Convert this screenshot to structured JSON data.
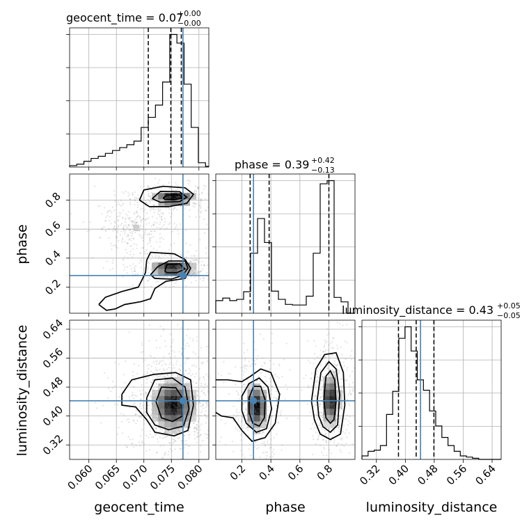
{
  "chart_data": {
    "type": "corner",
    "parameters": [
      "geocent_time",
      "phase",
      "luminosity_distance"
    ],
    "ranges": {
      "geocent_time": [
        0.0565,
        0.0818
      ],
      "phase": [
        0.02,
        0.98
      ],
      "luminosity_distance": [
        0.28,
        0.665
      ]
    },
    "ticks": {
      "geocent_time": [
        "0.060",
        "0.065",
        "0.070",
        "0.075",
        "0.080"
      ],
      "phase": [
        "0.2",
        "0.4",
        "0.6",
        "0.8"
      ],
      "luminosity_distance": [
        "0.32",
        "0.40",
        "0.48",
        "0.56",
        "0.64"
      ]
    },
    "titles": [
      {
        "param": "geocent_time",
        "label": "geocent_time = 0.07",
        "plus": "+0.00",
        "minus": "−0.00"
      },
      {
        "param": "phase",
        "label": "phase = 0.39",
        "plus": "+0.42",
        "minus": "−0.13"
      },
      {
        "param": "luminosity_distance",
        "label": "luminosity_distance = 0.43",
        "plus": "+0.05",
        "minus": "−0.05"
      }
    ],
    "truths": {
      "geocent_time": 0.0771,
      "phase": 0.28,
      "luminosity_distance": 0.442
    },
    "quantiles": {
      "geocent_time": [
        0.0708,
        0.0749,
        0.0768
      ],
      "phase": [
        0.257,
        0.388,
        0.8
      ],
      "luminosity_distance": [
        0.381,
        0.43,
        0.479
      ]
    },
    "histograms": {
      "geocent_time": {
        "edges": [
          0.0565,
          0.0578,
          0.0591,
          0.0604,
          0.0617,
          0.063,
          0.0643,
          0.0656,
          0.0669,
          0.0682,
          0.0695,
          0.0708,
          0.0721,
          0.0734,
          0.0747,
          0.076,
          0.0773,
          0.0786,
          0.0799,
          0.0812,
          0.0818
        ],
        "values": [
          2,
          4,
          8,
          12,
          15,
          19,
          23,
          27,
          31,
          36,
          55,
          69,
          86,
          118,
          184,
          172,
          115,
          55,
          6,
          1
        ]
      },
      "phase": {
        "edges": [
          0.02,
          0.068,
          0.116,
          0.164,
          0.212,
          0.26,
          0.308,
          0.356,
          0.404,
          0.452,
          0.5,
          0.548,
          0.596,
          0.644,
          0.692,
          0.74,
          0.788,
          0.836,
          0.884,
          0.932,
          0.98
        ],
        "values": [
          20,
          24,
          20,
          22,
          34,
          95,
          150,
          112,
          35,
          22,
          14,
          13,
          13,
          27,
          95,
          205,
          210,
          25,
          18,
          0
        ]
      },
      "luminosity_distance": {
        "edges": [
          0.28,
          0.297,
          0.314,
          0.331,
          0.348,
          0.365,
          0.382,
          0.399,
          0.416,
          0.433,
          0.45,
          0.467,
          0.484,
          0.501,
          0.518,
          0.535,
          0.552,
          0.569,
          0.586,
          0.603,
          0.62,
          0.665
        ],
        "values": [
          6,
          14,
          16,
          24,
          78,
          118,
          210,
          230,
          188,
          138,
          120,
          84,
          58,
          38,
          24,
          14,
          6,
          4,
          2,
          0,
          0
        ]
      }
    },
    "density_2d": [
      {
        "x": "geocent_time",
        "y": "phase",
        "modes": [
          {
            "center": [
              0.0755,
              0.815
            ],
            "sigma": [
              0.0024,
              0.03
            ]
          },
          {
            "center": [
              0.0752,
              0.33
            ],
            "sigma": [
              0.0026,
              0.03
            ]
          },
          {
            "center": [
              0.0685,
              0.62
            ],
            "sigma": [
              0.0022,
              0.05
            ]
          }
        ],
        "contours": [
          [
            [
              0.0692,
              0.8
            ],
            [
              0.07,
              0.87
            ],
            [
              0.0735,
              0.895
            ],
            [
              0.0775,
              0.885
            ],
            [
              0.079,
              0.84
            ],
            [
              0.0778,
              0.778
            ],
            [
              0.0745,
              0.755
            ],
            [
              0.071,
              0.755
            ],
            [
              0.0692,
              0.8
            ]
          ],
          [
            [
              0.0715,
              0.81
            ],
            [
              0.073,
              0.86
            ],
            [
              0.0765,
              0.858
            ],
            [
              0.0778,
              0.82
            ],
            [
              0.0765,
              0.79
            ],
            [
              0.073,
              0.785
            ],
            [
              0.0715,
              0.81
            ]
          ],
          [
            [
              0.0735,
              0.815
            ],
            [
              0.0742,
              0.835
            ],
            [
              0.0765,
              0.835
            ],
            [
              0.077,
              0.815
            ],
            [
              0.0755,
              0.802
            ],
            [
              0.0738,
              0.805
            ],
            [
              0.0735,
              0.815
            ]
          ],
          [
            [
              0.0618,
              0.08
            ],
            [
              0.063,
              0.13
            ],
            [
              0.066,
              0.17
            ],
            [
              0.069,
              0.2
            ],
            [
              0.0703,
              0.3
            ],
            [
              0.0705,
              0.385
            ],
            [
              0.0712,
              0.44
            ],
            [
              0.0755,
              0.43
            ],
            [
              0.0775,
              0.39
            ],
            [
              0.0785,
              0.33
            ],
            [
              0.0775,
              0.26
            ],
            [
              0.074,
              0.24
            ],
            [
              0.072,
              0.19
            ],
            [
              0.0712,
              0.12
            ],
            [
              0.0695,
              0.1
            ],
            [
              0.0665,
              0.08
            ],
            [
              0.0648,
              0.05
            ],
            [
              0.0632,
              0.04
            ],
            [
              0.0618,
              0.08
            ]
          ],
          [
            [
              0.0712,
              0.285
            ],
            [
              0.0725,
              0.34
            ],
            [
              0.0745,
              0.38
            ],
            [
              0.0775,
              0.38
            ],
            [
              0.078,
              0.33
            ],
            [
              0.077,
              0.28
            ],
            [
              0.075,
              0.255
            ],
            [
              0.072,
              0.26
            ],
            [
              0.0712,
              0.285
            ]
          ],
          [
            [
              0.0738,
              0.31
            ],
            [
              0.0742,
              0.355
            ],
            [
              0.0765,
              0.36
            ],
            [
              0.0775,
              0.325
            ],
            [
              0.076,
              0.3
            ],
            [
              0.0742,
              0.3
            ],
            [
              0.0738,
              0.31
            ]
          ]
        ]
      },
      {
        "x": "geocent_time",
        "y": "luminosity_distance",
        "modes": [
          {
            "center": [
              0.0754,
              0.43
            ],
            "sigma": [
              0.0025,
              0.045
            ]
          }
        ],
        "contours": [
          [
            [
              0.066,
              0.46
            ],
            [
              0.0678,
              0.5
            ],
            [
              0.0718,
              0.515
            ],
            [
              0.0758,
              0.52
            ],
            [
              0.0785,
              0.5
            ],
            [
              0.079,
              0.43
            ],
            [
              0.078,
              0.36
            ],
            [
              0.0755,
              0.345
            ],
            [
              0.072,
              0.355
            ],
            [
              0.0705,
              0.39
            ],
            [
              0.0685,
              0.425
            ],
            [
              0.066,
              0.43
            ],
            [
              0.066,
              0.46
            ]
          ],
          [
            [
              0.0705,
              0.45
            ],
            [
              0.072,
              0.5
            ],
            [
              0.0752,
              0.505
            ],
            [
              0.0775,
              0.48
            ],
            [
              0.0782,
              0.42
            ],
            [
              0.0772,
              0.372
            ],
            [
              0.0745,
              0.362
            ],
            [
              0.072,
              0.375
            ],
            [
              0.0705,
              0.41
            ],
            [
              0.0705,
              0.45
            ]
          ],
          [
            [
              0.0722,
              0.44
            ],
            [
              0.0732,
              0.48
            ],
            [
              0.0758,
              0.478
            ],
            [
              0.0772,
              0.445
            ],
            [
              0.077,
              0.4
            ],
            [
              0.0752,
              0.385
            ],
            [
              0.0732,
              0.395
            ],
            [
              0.0722,
              0.44
            ]
          ]
        ]
      },
      {
        "x": "phase",
        "y": "luminosity_distance",
        "modes": [
          {
            "center": [
              0.3,
              0.425
            ],
            "sigma": [
              0.05,
              0.04
            ]
          },
          {
            "center": [
              0.81,
              0.445
            ],
            "sigma": [
              0.04,
              0.045
            ]
          }
        ],
        "contours": [
          [
            [
              0.02,
              0.5
            ],
            [
              0.1,
              0.5
            ],
            [
              0.2,
              0.495
            ],
            [
              0.26,
              0.51
            ],
            [
              0.33,
              0.53
            ],
            [
              0.4,
              0.52
            ],
            [
              0.46,
              0.46
            ],
            [
              0.43,
              0.38
            ],
            [
              0.36,
              0.34
            ],
            [
              0.27,
              0.33
            ],
            [
              0.2,
              0.36
            ],
            [
              0.14,
              0.395
            ],
            [
              0.06,
              0.4
            ],
            [
              0.02,
              0.41
            ]
          ],
          [
            [
              0.2,
              0.455
            ],
            [
              0.25,
              0.49
            ],
            [
              0.32,
              0.505
            ],
            [
              0.38,
              0.48
            ],
            [
              0.405,
              0.42
            ],
            [
              0.37,
              0.365
            ],
            [
              0.3,
              0.355
            ],
            [
              0.23,
              0.38
            ],
            [
              0.2,
              0.415
            ],
            [
              0.2,
              0.455
            ]
          ],
          [
            [
              0.25,
              0.45
            ],
            [
              0.28,
              0.482
            ],
            [
              0.33,
              0.482
            ],
            [
              0.36,
              0.445
            ],
            [
              0.355,
              0.395
            ],
            [
              0.32,
              0.372
            ],
            [
              0.275,
              0.38
            ],
            [
              0.25,
              0.41
            ],
            [
              0.25,
              0.45
            ]
          ],
          [
            [
              0.68,
              0.44
            ],
            [
              0.71,
              0.53
            ],
            [
              0.77,
              0.57
            ],
            [
              0.85,
              0.575
            ],
            [
              0.9,
              0.52
            ],
            [
              0.91,
              0.43
            ],
            [
              0.88,
              0.35
            ],
            [
              0.81,
              0.335
            ],
            [
              0.74,
              0.35
            ],
            [
              0.7,
              0.39
            ],
            [
              0.68,
              0.44
            ]
          ],
          [
            [
              0.72,
              0.445
            ],
            [
              0.745,
              0.52
            ],
            [
              0.8,
              0.55
            ],
            [
              0.85,
              0.53
            ],
            [
              0.875,
              0.46
            ],
            [
              0.86,
              0.375
            ],
            [
              0.81,
              0.355
            ],
            [
              0.76,
              0.37
            ],
            [
              0.73,
              0.4
            ],
            [
              0.72,
              0.445
            ]
          ],
          [
            [
              0.765,
              0.445
            ],
            [
              0.78,
              0.51
            ],
            [
              0.81,
              0.525
            ],
            [
              0.84,
              0.5
            ],
            [
              0.85,
              0.44
            ],
            [
              0.835,
              0.39
            ],
            [
              0.81,
              0.38
            ],
            [
              0.78,
              0.395
            ],
            [
              0.765,
              0.445
            ]
          ]
        ]
      }
    ],
    "xlabels": [
      "geocent_time",
      "phase",
      "luminosity_distance"
    ],
    "ylabels": [
      "phase",
      "luminosity_distance"
    ]
  }
}
